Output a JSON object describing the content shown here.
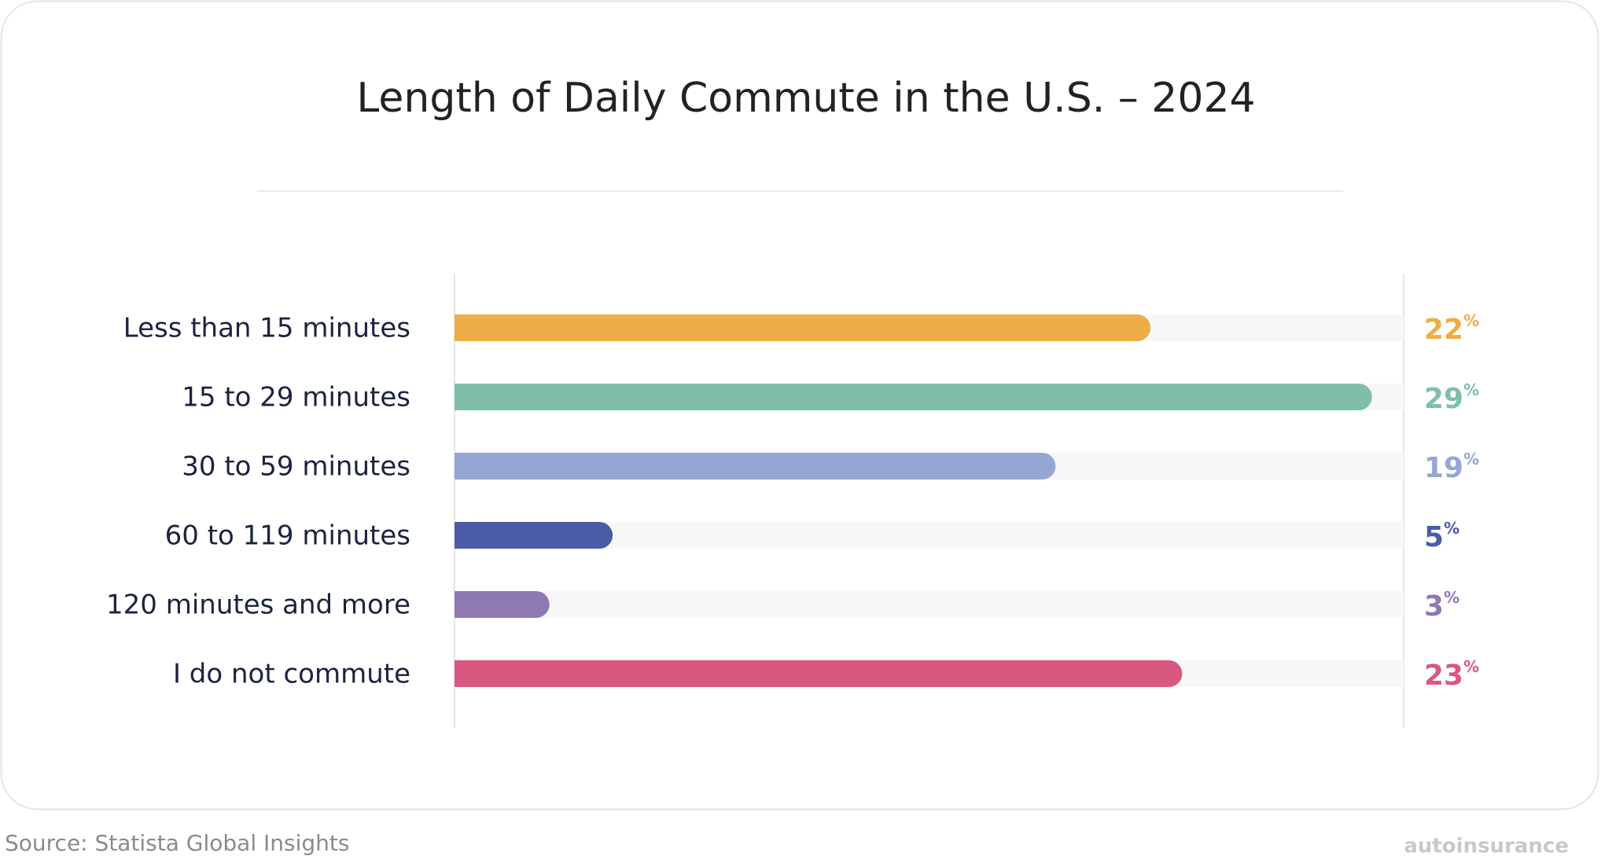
{
  "chart_data": {
    "type": "bar",
    "orientation": "horizontal",
    "title": "Length of Daily Commute in the U.S. – 2024",
    "categories": [
      "Less than 15 minutes",
      "15 to 29 minutes",
      "30 to 59 minutes",
      "60 to 119 minutes",
      "120 minutes and more",
      "I do not commute"
    ],
    "values": [
      22,
      29,
      19,
      5,
      3,
      23
    ],
    "value_labels": [
      "22%",
      "29%",
      "19%",
      "5%",
      "3%",
      "23%"
    ],
    "colors": [
      "#eead45",
      "#7fbfa7",
      "#94a7d3",
      "#4a5ba8",
      "#8e79b3",
      "#d9587f"
    ],
    "xlim": [
      0,
      30
    ]
  },
  "footer": {
    "source": "Source: Statista Global Insights",
    "brand": "autoinsurance"
  }
}
